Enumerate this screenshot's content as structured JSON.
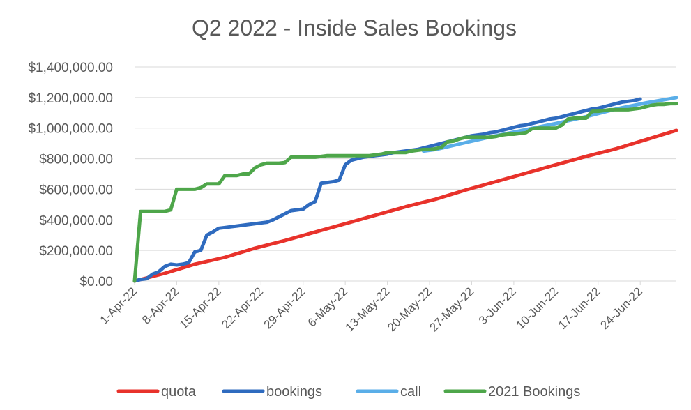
{
  "chart_data": {
    "type": "line",
    "title": "Q2 2022 - Inside Sales Bookings",
    "xlabel": "",
    "ylabel": "",
    "ylim": [
      0,
      1400000
    ],
    "x_range": [
      0,
      90
    ],
    "y_ticks": [
      {
        "value": 0,
        "label": "$0.00"
      },
      {
        "value": 200000,
        "label": "$200,000.00"
      },
      {
        "value": 400000,
        "label": "$400,000.00"
      },
      {
        "value": 600000,
        "label": "$600,000.00"
      },
      {
        "value": 800000,
        "label": "$800,000.00"
      },
      {
        "value": 1000000,
        "label": "$1,000,000.00"
      },
      {
        "value": 1200000,
        "label": "$1,200,000.00"
      },
      {
        "value": 1400000,
        "label": "$1,400,000.00"
      }
    ],
    "x_ticks": [
      {
        "day": 0,
        "label": "1-Apr-22"
      },
      {
        "day": 7,
        "label": "8-Apr-22"
      },
      {
        "day": 14,
        "label": "15-Apr-22"
      },
      {
        "day": 21,
        "label": "22-Apr-22"
      },
      {
        "day": 28,
        "label": "29-Apr-22"
      },
      {
        "day": 35,
        "label": "6-May-22"
      },
      {
        "day": 42,
        "label": "13-May-22"
      },
      {
        "day": 49,
        "label": "20-May-22"
      },
      {
        "day": 56,
        "label": "27-May-22"
      },
      {
        "day": 63,
        "label": "3-Jun-22"
      },
      {
        "day": 70,
        "label": "10-Jun-22"
      },
      {
        "day": 77,
        "label": "17-Jun-22"
      },
      {
        "day": 84,
        "label": "24-Jun-22"
      }
    ],
    "series": [
      {
        "name": "quota",
        "color": "#e8322b",
        "points": [
          [
            0,
            0
          ],
          [
            5,
            50000
          ],
          [
            10,
            110000
          ],
          [
            15,
            155000
          ],
          [
            20,
            215000
          ],
          [
            25,
            265000
          ],
          [
            30,
            320000
          ],
          [
            35,
            375000
          ],
          [
            40,
            430000
          ],
          [
            45,
            485000
          ],
          [
            50,
            535000
          ],
          [
            55,
            595000
          ],
          [
            60,
            650000
          ],
          [
            65,
            705000
          ],
          [
            70,
            760000
          ],
          [
            75,
            815000
          ],
          [
            80,
            865000
          ],
          [
            85,
            925000
          ],
          [
            90,
            985000
          ]
        ]
      },
      {
        "name": "bookings",
        "color": "#2f6bbf",
        "points": [
          [
            0,
            0
          ],
          [
            1,
            10000
          ],
          [
            2,
            15000
          ],
          [
            3,
            45000
          ],
          [
            4,
            60000
          ],
          [
            5,
            95000
          ],
          [
            6,
            110000
          ],
          [
            7,
            105000
          ],
          [
            8,
            110000
          ],
          [
            9,
            120000
          ],
          [
            10,
            190000
          ],
          [
            11,
            200000
          ],
          [
            12,
            300000
          ],
          [
            13,
            320000
          ],
          [
            14,
            345000
          ],
          [
            15,
            350000
          ],
          [
            16,
            355000
          ],
          [
            17,
            360000
          ],
          [
            18,
            365000
          ],
          [
            19,
            370000
          ],
          [
            20,
            375000
          ],
          [
            21,
            380000
          ],
          [
            22,
            385000
          ],
          [
            23,
            400000
          ],
          [
            24,
            420000
          ],
          [
            25,
            440000
          ],
          [
            26,
            460000
          ],
          [
            27,
            465000
          ],
          [
            28,
            470000
          ],
          [
            29,
            500000
          ],
          [
            30,
            520000
          ],
          [
            31,
            640000
          ],
          [
            32,
            645000
          ],
          [
            33,
            650000
          ],
          [
            34,
            660000
          ],
          [
            35,
            760000
          ],
          [
            36,
            790000
          ],
          [
            37,
            800000
          ],
          [
            38,
            810000
          ],
          [
            39,
            815000
          ],
          [
            40,
            820000
          ],
          [
            41,
            825000
          ],
          [
            42,
            830000
          ],
          [
            43,
            840000
          ],
          [
            44,
            845000
          ],
          [
            45,
            850000
          ],
          [
            46,
            855000
          ],
          [
            47,
            860000
          ],
          [
            48,
            870000
          ],
          [
            49,
            880000
          ],
          [
            50,
            890000
          ],
          [
            51,
            900000
          ],
          [
            52,
            910000
          ],
          [
            53,
            920000
          ],
          [
            54,
            930000
          ],
          [
            55,
            940000
          ],
          [
            56,
            950000
          ],
          [
            57,
            955000
          ],
          [
            58,
            960000
          ],
          [
            59,
            970000
          ],
          [
            60,
            975000
          ],
          [
            61,
            985000
          ],
          [
            62,
            995000
          ],
          [
            63,
            1005000
          ],
          [
            64,
            1015000
          ],
          [
            65,
            1020000
          ],
          [
            66,
            1030000
          ],
          [
            67,
            1040000
          ],
          [
            68,
            1050000
          ],
          [
            69,
            1060000
          ],
          [
            70,
            1065000
          ],
          [
            71,
            1075000
          ],
          [
            72,
            1085000
          ],
          [
            73,
            1095000
          ],
          [
            74,
            1105000
          ],
          [
            75,
            1115000
          ],
          [
            76,
            1125000
          ],
          [
            77,
            1130000
          ],
          [
            78,
            1140000
          ],
          [
            79,
            1150000
          ],
          [
            80,
            1160000
          ],
          [
            81,
            1170000
          ],
          [
            82,
            1175000
          ],
          [
            83,
            1180000
          ],
          [
            84,
            1190000
          ]
        ]
      },
      {
        "name": "call",
        "color": "#5aaee8",
        "points": [
          [
            48,
            850000
          ],
          [
            50,
            860000
          ],
          [
            55,
            905000
          ],
          [
            60,
            950000
          ],
          [
            65,
            990000
          ],
          [
            70,
            1030000
          ],
          [
            75,
            1075000
          ],
          [
            80,
            1125000
          ],
          [
            85,
            1165000
          ],
          [
            90,
            1200000
          ]
        ]
      },
      {
        "name": "2021 Bookings",
        "color": "#4ea64a",
        "points": [
          [
            0,
            0
          ],
          [
            1,
            455000
          ],
          [
            2,
            455000
          ],
          [
            3,
            455000
          ],
          [
            4,
            455000
          ],
          [
            5,
            455000
          ],
          [
            6,
            465000
          ],
          [
            7,
            600000
          ],
          [
            8,
            600000
          ],
          [
            9,
            600000
          ],
          [
            10,
            600000
          ],
          [
            11,
            610000
          ],
          [
            12,
            635000
          ],
          [
            13,
            635000
          ],
          [
            14,
            635000
          ],
          [
            15,
            690000
          ],
          [
            16,
            690000
          ],
          [
            17,
            690000
          ],
          [
            18,
            700000
          ],
          [
            19,
            700000
          ],
          [
            20,
            740000
          ],
          [
            21,
            760000
          ],
          [
            22,
            770000
          ],
          [
            23,
            770000
          ],
          [
            24,
            770000
          ],
          [
            25,
            775000
          ],
          [
            26,
            810000
          ],
          [
            27,
            810000
          ],
          [
            28,
            810000
          ],
          [
            29,
            810000
          ],
          [
            30,
            810000
          ],
          [
            31,
            815000
          ],
          [
            32,
            820000
          ],
          [
            33,
            820000
          ],
          [
            34,
            820000
          ],
          [
            35,
            820000
          ],
          [
            36,
            820000
          ],
          [
            37,
            820000
          ],
          [
            38,
            820000
          ],
          [
            39,
            820000
          ],
          [
            40,
            825000
          ],
          [
            41,
            830000
          ],
          [
            42,
            840000
          ],
          [
            43,
            840000
          ],
          [
            44,
            840000
          ],
          [
            45,
            840000
          ],
          [
            46,
            850000
          ],
          [
            47,
            855000
          ],
          [
            48,
            860000
          ],
          [
            49,
            860000
          ],
          [
            50,
            865000
          ],
          [
            51,
            875000
          ],
          [
            52,
            910000
          ],
          [
            53,
            915000
          ],
          [
            54,
            930000
          ],
          [
            55,
            940000
          ],
          [
            56,
            940000
          ],
          [
            57,
            940000
          ],
          [
            58,
            940000
          ],
          [
            59,
            940000
          ],
          [
            60,
            945000
          ],
          [
            61,
            955000
          ],
          [
            62,
            960000
          ],
          [
            63,
            960000
          ],
          [
            64,
            965000
          ],
          [
            65,
            970000
          ],
          [
            66,
            995000
          ],
          [
            67,
            1000000
          ],
          [
            68,
            1000000
          ],
          [
            69,
            1000000
          ],
          [
            70,
            1000000
          ],
          [
            71,
            1020000
          ],
          [
            72,
            1060000
          ],
          [
            73,
            1065000
          ],
          [
            74,
            1065000
          ],
          [
            75,
            1065000
          ],
          [
            76,
            1110000
          ],
          [
            77,
            1110000
          ],
          [
            78,
            1115000
          ],
          [
            79,
            1120000
          ],
          [
            80,
            1120000
          ],
          [
            81,
            1120000
          ],
          [
            82,
            1120000
          ],
          [
            83,
            1125000
          ],
          [
            84,
            1130000
          ],
          [
            85,
            1140000
          ],
          [
            86,
            1150000
          ],
          [
            87,
            1155000
          ],
          [
            88,
            1155000
          ],
          [
            89,
            1160000
          ],
          [
            90,
            1160000
          ]
        ]
      }
    ],
    "legend": {
      "position": "bottom",
      "entries": [
        "quota",
        "bookings",
        "call",
        "2021 Bookings"
      ]
    }
  }
}
